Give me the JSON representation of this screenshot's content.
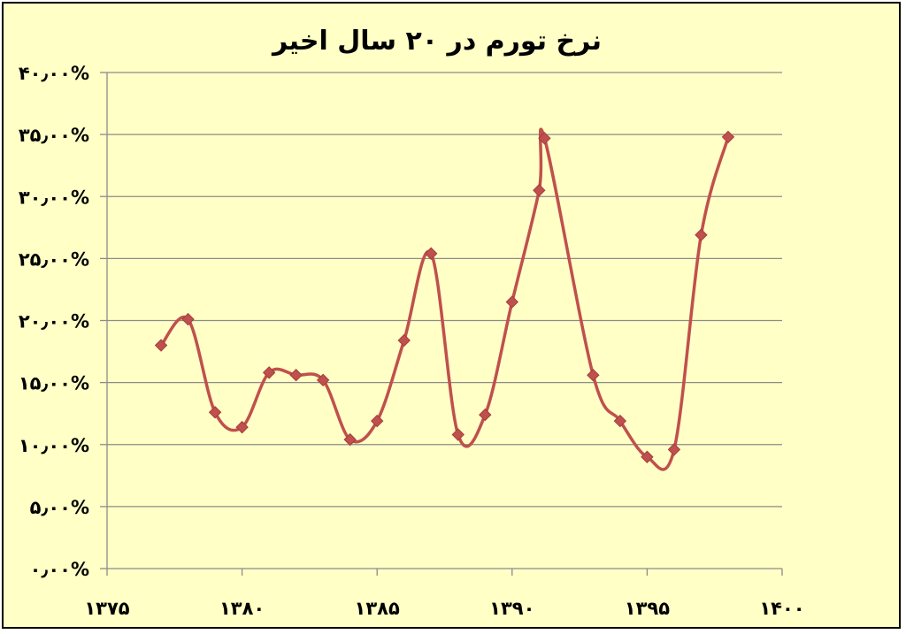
{
  "chart_data": {
    "type": "line",
    "title": "نرخ تورم در ۲۰ سال اخیر",
    "xlabel": "",
    "ylabel": "",
    "xlim": [
      1375,
      1400
    ],
    "ylim": [
      0,
      40
    ],
    "x_ticks": [
      {
        "value": 1375,
        "label": "۱۳۷۵"
      },
      {
        "value": 1380,
        "label": "۱۳۸۰"
      },
      {
        "value": 1385,
        "label": "۱۳۸۵"
      },
      {
        "value": 1390,
        "label": "۱۳۹۰"
      },
      {
        "value": 1395,
        "label": "۱۳۹۵"
      },
      {
        "value": 1400,
        "label": "۱۴۰۰"
      }
    ],
    "y_ticks": [
      {
        "value": 0,
        "label": "۰٫۰۰%"
      },
      {
        "value": 5,
        "label": "۵٫۰۰%"
      },
      {
        "value": 10,
        "label": "۱۰٫۰۰%"
      },
      {
        "value": 15,
        "label": "۱۵٫۰۰%"
      },
      {
        "value": 20,
        "label": "۲۰٫۰۰%"
      },
      {
        "value": 25,
        "label": "۲۵٫۰۰%"
      },
      {
        "value": 30,
        "label": "۳۰٫۰۰%"
      },
      {
        "value": 35,
        "label": "۳۵٫۰۰%"
      },
      {
        "value": 40,
        "label": "۴۰٫۰۰%"
      }
    ],
    "grid": true,
    "legend": "none",
    "series": [
      {
        "color": "#c0504d",
        "marker": "diamond",
        "smooth": true,
        "points": [
          {
            "x": 1377,
            "y": 18.0
          },
          {
            "x": 1378,
            "y": 20.1
          },
          {
            "x": 1379,
            "y": 12.6
          },
          {
            "x": 1380,
            "y": 11.4
          },
          {
            "x": 1381,
            "y": 15.8
          },
          {
            "x": 1382,
            "y": 15.6
          },
          {
            "x": 1383,
            "y": 15.2
          },
          {
            "x": 1384,
            "y": 10.4
          },
          {
            "x": 1385,
            "y": 11.9
          },
          {
            "x": 1386,
            "y": 18.4
          },
          {
            "x": 1387,
            "y": 25.4
          },
          {
            "x": 1388,
            "y": 10.8
          },
          {
            "x": 1389,
            "y": 12.4
          },
          {
            "x": 1390,
            "y": 21.5
          },
          {
            "x": 1391,
            "y": 30.5
          },
          {
            "x": 1391.2,
            "y": 34.7
          },
          {
            "x": 1393,
            "y": 15.6
          },
          {
            "x": 1394,
            "y": 11.9
          },
          {
            "x": 1395,
            "y": 9.0
          },
          {
            "x": 1396,
            "y": 9.6
          },
          {
            "x": 1397,
            "y": 26.9
          },
          {
            "x": 1398,
            "y": 34.8
          }
        ]
      }
    ]
  }
}
